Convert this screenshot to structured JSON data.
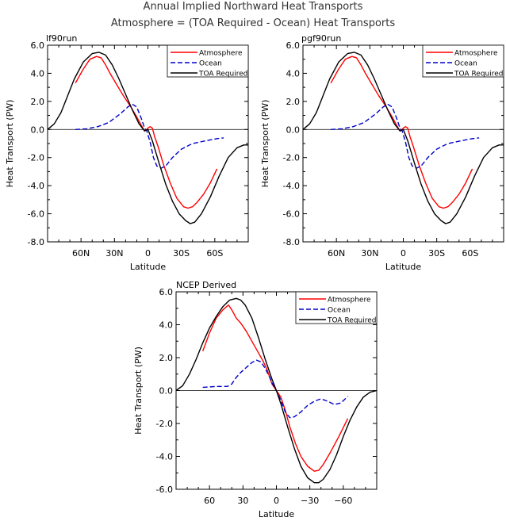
{
  "title_line1": "Annual Implied Northward Heat Transports",
  "title_line2": "Atmosphere = (TOA Required - Ocean) Heat Transports",
  "colors": {
    "atmosphere": "#ff0000",
    "ocean": "#0000cc",
    "toa": "#000000"
  },
  "chart_data": [
    {
      "type": "line",
      "title": "lf90run",
      "xlabel": "Latitude",
      "ylabel": "Heat Transport (PW)",
      "xlim": [
        90,
        -90
      ],
      "ylim": [
        -8,
        6
      ],
      "xticks": [
        60,
        30,
        0,
        -30,
        -60
      ],
      "xtick_labels": [
        "60N",
        "30N",
        "0",
        "30S",
        "60S"
      ],
      "yticks": [
        6,
        4,
        2,
        0,
        -2,
        -4,
        -6,
        -8
      ],
      "ytick_labels": [
        "6.0",
        "4.0",
        "2.0",
        "0.0",
        "-2.0",
        "-4.0",
        "-6.0",
        "-8.0"
      ],
      "legend": [
        "Atmosphere",
        "Ocean",
        "TOA Required"
      ],
      "series": [
        {
          "name": "Atmosphere",
          "style": "solid",
          "color": "#ff0000",
          "x": [
            65,
            58,
            52,
            46,
            42,
            38,
            34,
            28,
            22,
            16,
            10,
            6,
            3,
            1,
            0,
            -2,
            -4,
            -6,
            -9,
            -14,
            -20,
            -26,
            -32,
            -36,
            -40,
            -44,
            -50,
            -56,
            -62
          ],
          "y": [
            3.3,
            4.3,
            5.0,
            5.2,
            5.1,
            4.6,
            4.0,
            3.2,
            2.4,
            1.7,
            0.9,
            0.3,
            -0.1,
            0.0,
            0.1,
            0.2,
            0.1,
            -0.5,
            -1.2,
            -2.5,
            -3.8,
            -4.9,
            -5.5,
            -5.6,
            -5.5,
            -5.2,
            -4.6,
            -3.8,
            -2.8
          ]
        },
        {
          "name": "Ocean",
          "style": "dashed",
          "color": "#0000cc",
          "x": [
            65,
            55,
            45,
            35,
            25,
            18,
            14,
            10,
            6,
            3,
            1,
            -2,
            -5,
            -8,
            -12,
            -16,
            -22,
            -30,
            -40,
            -52,
            -62,
            -68
          ],
          "y": [
            0.0,
            0.05,
            0.2,
            0.5,
            1.1,
            1.6,
            1.8,
            1.6,
            0.8,
            0.1,
            -0.1,
            -0.9,
            -2.0,
            -2.6,
            -2.75,
            -2.6,
            -2.0,
            -1.4,
            -1.0,
            -0.8,
            -0.65,
            -0.6
          ]
        },
        {
          "name": "TOA Required",
          "style": "solid",
          "color": "#000000",
          "x": [
            90,
            84,
            78,
            72,
            66,
            58,
            50,
            44,
            38,
            32,
            26,
            20,
            14,
            8,
            3,
            0,
            -4,
            -10,
            -16,
            -22,
            -28,
            -34,
            -38,
            -42,
            -48,
            -56,
            -64,
            -72,
            -80,
            -86,
            -90
          ],
          "y": [
            0.0,
            0.4,
            1.2,
            2.4,
            3.6,
            4.8,
            5.4,
            5.5,
            5.3,
            4.6,
            3.6,
            2.5,
            1.4,
            0.4,
            -0.1,
            0.0,
            -0.8,
            -2.4,
            -3.9,
            -5.1,
            -6.0,
            -6.5,
            -6.7,
            -6.6,
            -6.0,
            -4.8,
            -3.3,
            -2.0,
            -1.3,
            -1.1,
            -1.1
          ]
        }
      ]
    },
    {
      "type": "line",
      "title": "pgf90run",
      "xlabel": "Latitude",
      "ylabel": "Heat Transport (PW)",
      "xlim": [
        90,
        -90
      ],
      "ylim": [
        -8,
        6
      ],
      "xticks": [
        60,
        30,
        0,
        -30,
        -60
      ],
      "xtick_labels": [
        "60N",
        "30N",
        "0",
        "30S",
        "60S"
      ],
      "yticks": [
        6,
        4,
        2,
        0,
        -2,
        -4,
        -6,
        -8
      ],
      "ytick_labels": [
        "6.0",
        "4.0",
        "2.0",
        "0.0",
        "-2.0",
        "-4.0",
        "-6.0",
        "-8.0"
      ],
      "legend": [
        "Atmosphere",
        "Ocean",
        "TOA Required"
      ],
      "series": [
        {
          "name": "Atmosphere",
          "style": "solid",
          "color": "#ff0000",
          "x": [
            65,
            58,
            52,
            46,
            42,
            38,
            34,
            28,
            22,
            16,
            10,
            6,
            3,
            1,
            0,
            -2,
            -4,
            -6,
            -9,
            -14,
            -20,
            -26,
            -32,
            -36,
            -40,
            -44,
            -50,
            -56,
            -62
          ],
          "y": [
            3.3,
            4.3,
            5.0,
            5.2,
            5.1,
            4.6,
            4.0,
            3.2,
            2.4,
            1.7,
            0.9,
            0.3,
            -0.1,
            0.0,
            0.1,
            0.2,
            0.1,
            -0.5,
            -1.2,
            -2.5,
            -3.8,
            -4.9,
            -5.5,
            -5.6,
            -5.5,
            -5.2,
            -4.6,
            -3.8,
            -2.8
          ]
        },
        {
          "name": "Ocean",
          "style": "dashed",
          "color": "#0000cc",
          "x": [
            65,
            55,
            45,
            35,
            25,
            18,
            14,
            10,
            6,
            3,
            1,
            -2,
            -5,
            -8,
            -12,
            -16,
            -22,
            -30,
            -40,
            -52,
            -62,
            -68
          ],
          "y": [
            0.0,
            0.05,
            0.2,
            0.5,
            1.1,
            1.6,
            1.8,
            1.6,
            0.8,
            0.1,
            -0.1,
            -0.9,
            -2.0,
            -2.6,
            -2.75,
            -2.6,
            -2.0,
            -1.4,
            -1.0,
            -0.8,
            -0.65,
            -0.6
          ]
        },
        {
          "name": "TOA Required",
          "style": "solid",
          "color": "#000000",
          "x": [
            90,
            84,
            78,
            72,
            66,
            58,
            50,
            44,
            38,
            32,
            26,
            20,
            14,
            8,
            3,
            0,
            -4,
            -10,
            -16,
            -22,
            -28,
            -34,
            -38,
            -42,
            -48,
            -56,
            -64,
            -72,
            -80,
            -86,
            -90
          ],
          "y": [
            0.0,
            0.4,
            1.2,
            2.4,
            3.6,
            4.8,
            5.4,
            5.5,
            5.3,
            4.6,
            3.6,
            2.5,
            1.4,
            0.4,
            -0.1,
            0.0,
            -0.8,
            -2.4,
            -3.9,
            -5.1,
            -6.0,
            -6.5,
            -6.7,
            -6.6,
            -6.0,
            -4.8,
            -3.3,
            -2.0,
            -1.3,
            -1.1,
            -1.1
          ]
        }
      ]
    },
    {
      "type": "line",
      "title": "NCEP Derived",
      "xlabel": "Latitude",
      "ylabel": "Heat Transport (PW)",
      "xlim": [
        90,
        -90
      ],
      "ylim": [
        -6,
        6
      ],
      "xticks": [
        60,
        30,
        0,
        -30,
        -60
      ],
      "xtick_labels": [
        "60",
        "30",
        "0",
        "−30",
        "−60"
      ],
      "yticks": [
        6,
        4,
        2,
        0,
        -2,
        -4,
        -6
      ],
      "ytick_labels": [
        "6.0",
        "4.0",
        "2.0",
        "0.0",
        "-2.0",
        "-4.0",
        "-6.0"
      ],
      "legend": [
        "Atmosphere",
        "Ocean",
        "TOA Required"
      ],
      "series": [
        {
          "name": "Atmosphere",
          "style": "solid",
          "color": "#ff0000",
          "x": [
            66,
            60,
            54,
            48,
            43,
            40,
            36,
            32,
            27,
            22,
            17,
            12,
            8,
            4,
            0,
            -4,
            -8,
            -12,
            -17,
            -22,
            -28,
            -34,
            -38,
            -42,
            -48,
            -56,
            -64
          ],
          "y": [
            2.4,
            3.5,
            4.4,
            4.9,
            5.2,
            4.9,
            4.4,
            4.1,
            3.6,
            3.0,
            2.4,
            1.8,
            1.2,
            0.4,
            0.0,
            -0.4,
            -1.2,
            -2.2,
            -3.2,
            -4.0,
            -4.6,
            -4.9,
            -4.85,
            -4.5,
            -3.8,
            -2.8,
            -1.7
          ]
        },
        {
          "name": "Ocean",
          "style": "dashed",
          "color": "#0000cc",
          "x": [
            66,
            60,
            54,
            48,
            44,
            40,
            36,
            32,
            27,
            22,
            18,
            14,
            10,
            6,
            2,
            0,
            -4,
            -8,
            -12,
            -16,
            -22,
            -28,
            -34,
            -40,
            -46,
            -52,
            -58,
            -64
          ],
          "y": [
            0.2,
            0.22,
            0.25,
            0.25,
            0.25,
            0.4,
            0.8,
            1.1,
            1.4,
            1.7,
            1.85,
            1.75,
            1.35,
            0.8,
            0.2,
            0.0,
            -0.6,
            -1.3,
            -1.65,
            -1.6,
            -1.3,
            -0.9,
            -0.65,
            -0.5,
            -0.65,
            -0.85,
            -0.75,
            -0.35
          ]
        },
        {
          "name": "TOA Required",
          "style": "solid",
          "color": "#000000",
          "x": [
            90,
            84,
            78,
            72,
            66,
            60,
            54,
            48,
            42,
            36,
            32,
            28,
            22,
            16,
            10,
            4,
            0,
            -4,
            -10,
            -16,
            -22,
            -28,
            -34,
            -38,
            -42,
            -48,
            -54,
            -60,
            -66,
            -72,
            -78,
            -84,
            -90
          ],
          "y": [
            0.0,
            0.3,
            1.0,
            1.9,
            2.9,
            3.8,
            4.5,
            5.1,
            5.5,
            5.6,
            5.5,
            5.2,
            4.4,
            3.2,
            1.9,
            0.7,
            0.0,
            -0.8,
            -2.2,
            -3.5,
            -4.6,
            -5.3,
            -5.6,
            -5.6,
            -5.4,
            -4.8,
            -3.9,
            -2.8,
            -1.8,
            -1.0,
            -0.4,
            -0.1,
            0.0
          ]
        }
      ]
    }
  ]
}
